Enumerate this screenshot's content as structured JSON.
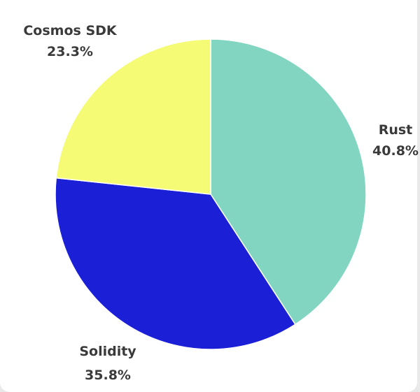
{
  "chart_data": {
    "type": "pie",
    "slices": [
      {
        "label": "Rust",
        "value": 40.8,
        "value_label": "40.8%",
        "color": "#82d6c1"
      },
      {
        "label": "Solidity",
        "value": 35.8,
        "value_label": "35.8%",
        "color": "#1b20d6"
      },
      {
        "label": "Cosmos SDK",
        "value": 23.3,
        "value_label": "23.3%",
        "color": "#f5fb74"
      }
    ],
    "start": "12 o'clock",
    "direction": "clockwise",
    "legend": "none",
    "labels": "outside slices"
  }
}
